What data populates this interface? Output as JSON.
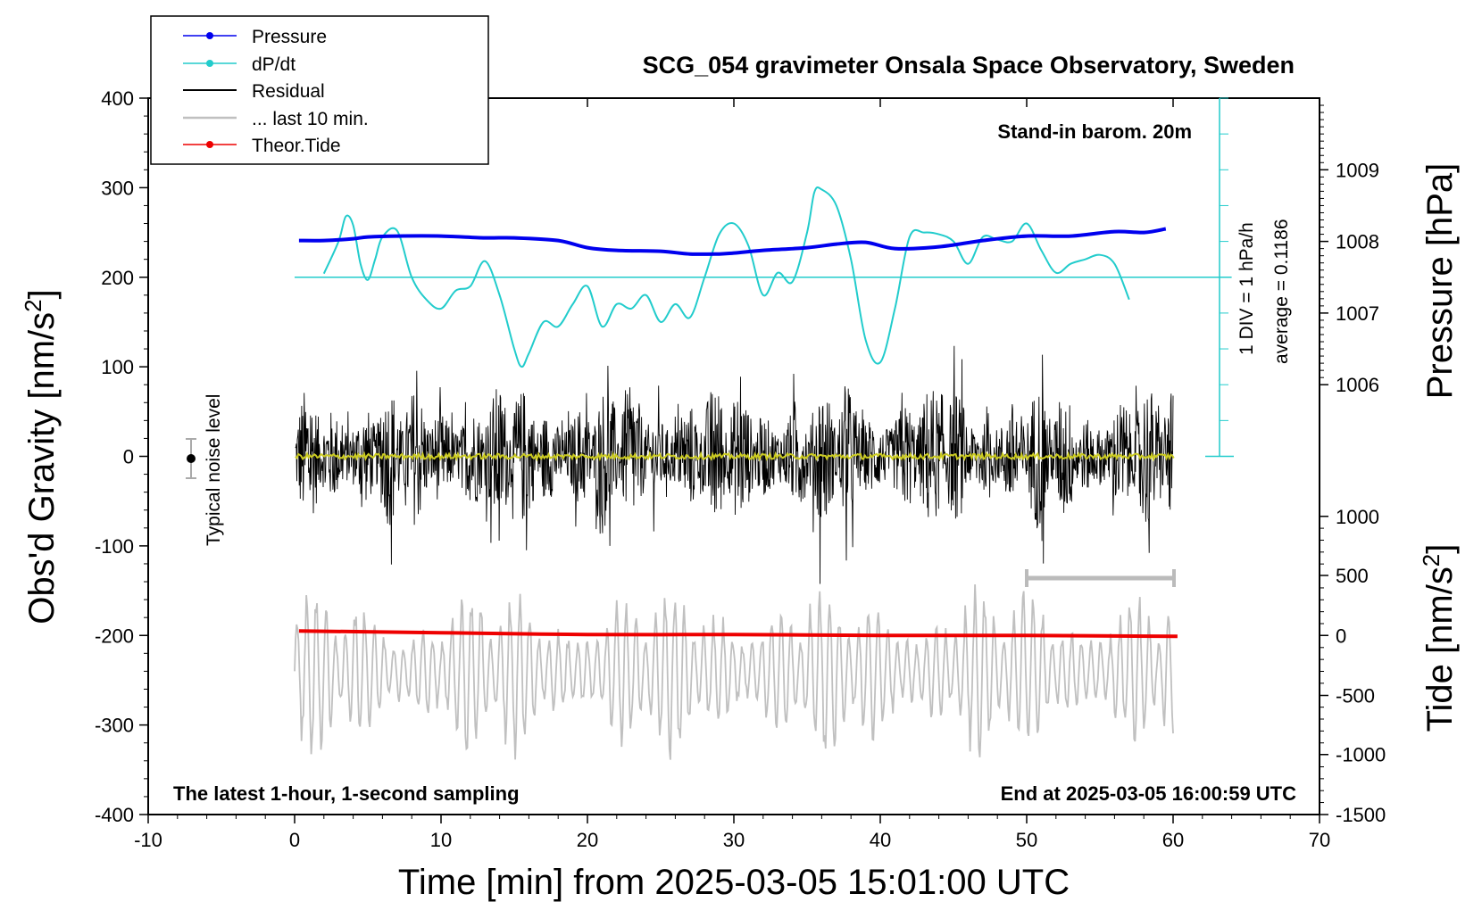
{
  "chart_data": {
    "type": "line",
    "title": "SCG_054 gravimeter Onsala Space Observatory, Sweden",
    "xlabel": "Time [min] from 2025-03-05 15:01:00 UTC",
    "ylabel_left": "Obs'd Gravity [nm/s",
    "ylabel_left_sup": "2",
    "ylabel_left_end": "]",
    "ylabel_right_top": "Pressure [hPa]",
    "ylabel_right_bottom": "Tide [nm/s",
    "ylabel_right_bottom_sup": "2",
    "ylabel_right_bottom_end": "]",
    "xlim": [
      -10,
      70
    ],
    "ylim_left": [
      -400,
      400
    ],
    "x_ticks": [
      "-10",
      "0",
      "10",
      "20",
      "30",
      "40",
      "50",
      "60",
      "70"
    ],
    "y_left_ticks": [
      "400",
      "300",
      "200",
      "100",
      "0",
      "-100",
      "-200",
      "-300",
      "-400"
    ],
    "pressure_ticks": [
      "1009",
      "1008",
      "1007",
      "1006"
    ],
    "tide_ticks": [
      "1000",
      "500",
      "0",
      "-500",
      "-1000",
      "-1500"
    ],
    "pressure_axis": {
      "values": [
        1009,
        1008,
        1007,
        1006
      ],
      "gravity_equiv": [
        320,
        240,
        160,
        80
      ]
    },
    "tide_axis": {
      "values": [
        1000,
        500,
        0,
        -500,
        -1000,
        -1500
      ],
      "gravity_equiv": [
        -67,
        -133,
        -200,
        -267,
        -333,
        -400
      ]
    },
    "legend": [
      {
        "label": "Pressure",
        "color": "#0000ee",
        "marker": true
      },
      {
        "label": "dP/dt",
        "color": "#22cccc",
        "marker": true
      },
      {
        "label": "Residual",
        "color": "#000000",
        "marker": false
      },
      {
        "label": "... last 10 min.",
        "color": "#c0c0c0",
        "marker": false
      },
      {
        "label": "Theor.Tide",
        "color": "#ee0000",
        "marker": true
      }
    ],
    "annotations": {
      "barometer": "Stand-in barom. 20m",
      "latest": "The latest 1-hour, 1-second sampling",
      "end": "End at 2025-03-05 16:00:59 UTC",
      "div": "1 DIV = 1 hPa/h",
      "average": "average = 0.1186",
      "noise": "Typical noise level"
    },
    "series": [
      {
        "name": "Pressure",
        "color": "#0000ee",
        "x": [
          0.3,
          2,
          4,
          5,
          7,
          10,
          13,
          15,
          18,
          20,
          22,
          25,
          27,
          29,
          30,
          32,
          35,
          37,
          39,
          41,
          44,
          47,
          50,
          53,
          56,
          58,
          59.5
        ],
        "y": [
          241,
          241,
          243,
          245,
          246,
          246,
          244,
          244,
          241,
          233,
          230,
          229,
          226,
          226,
          227,
          230,
          233,
          237,
          239,
          232,
          234,
          241,
          246,
          246,
          251,
          250,
          254
        ]
      },
      {
        "name": "dP/dt",
        "color": "#22cccc",
        "baseline": 200,
        "x": [
          2,
          3,
          3.5,
          4,
          4.5,
          5,
          5.5,
          6,
          7,
          8,
          9,
          10,
          11,
          12,
          13,
          14,
          15,
          15.5,
          16,
          17,
          18,
          19,
          20,
          21,
          22,
          23,
          24,
          25,
          26,
          27,
          28,
          29,
          30,
          31,
          32,
          33,
          34,
          35,
          35.5,
          36,
          37,
          38,
          39,
          40,
          41,
          42,
          43,
          44,
          45,
          46,
          47,
          48,
          49,
          50,
          51,
          52,
          53,
          54,
          55,
          56,
          57
        ],
        "y": [
          204,
          240,
          268,
          258,
          215,
          197,
          220,
          245,
          252,
          200,
          175,
          165,
          185,
          190,
          218,
          180,
          120,
          100,
          115,
          150,
          145,
          170,
          190,
          145,
          170,
          165,
          180,
          150,
          170,
          155,
          200,
          248,
          260,
          235,
          180,
          205,
          195,
          250,
          295,
          298,
          280,
          220,
          130,
          105,
          165,
          245,
          250,
          248,
          240,
          215,
          245,
          242,
          240,
          260,
          230,
          205,
          215,
          220,
          225,
          215,
          175
        ]
      },
      {
        "name": "Residual",
        "color": "#000000",
        "center": 0,
        "envelope": 150
      },
      {
        "name": "... last 10 min.",
        "color": "#c0c0c0",
        "center": -260,
        "envelope": 110
      },
      {
        "name": "Theor.Tide",
        "color": "#ee0000",
        "x": [
          0.3,
          10,
          20,
          30,
          40,
          50,
          60.3
        ],
        "y": [
          -195,
          -197,
          -199,
          -199,
          -200,
          -200,
          -201
        ]
      }
    ]
  }
}
